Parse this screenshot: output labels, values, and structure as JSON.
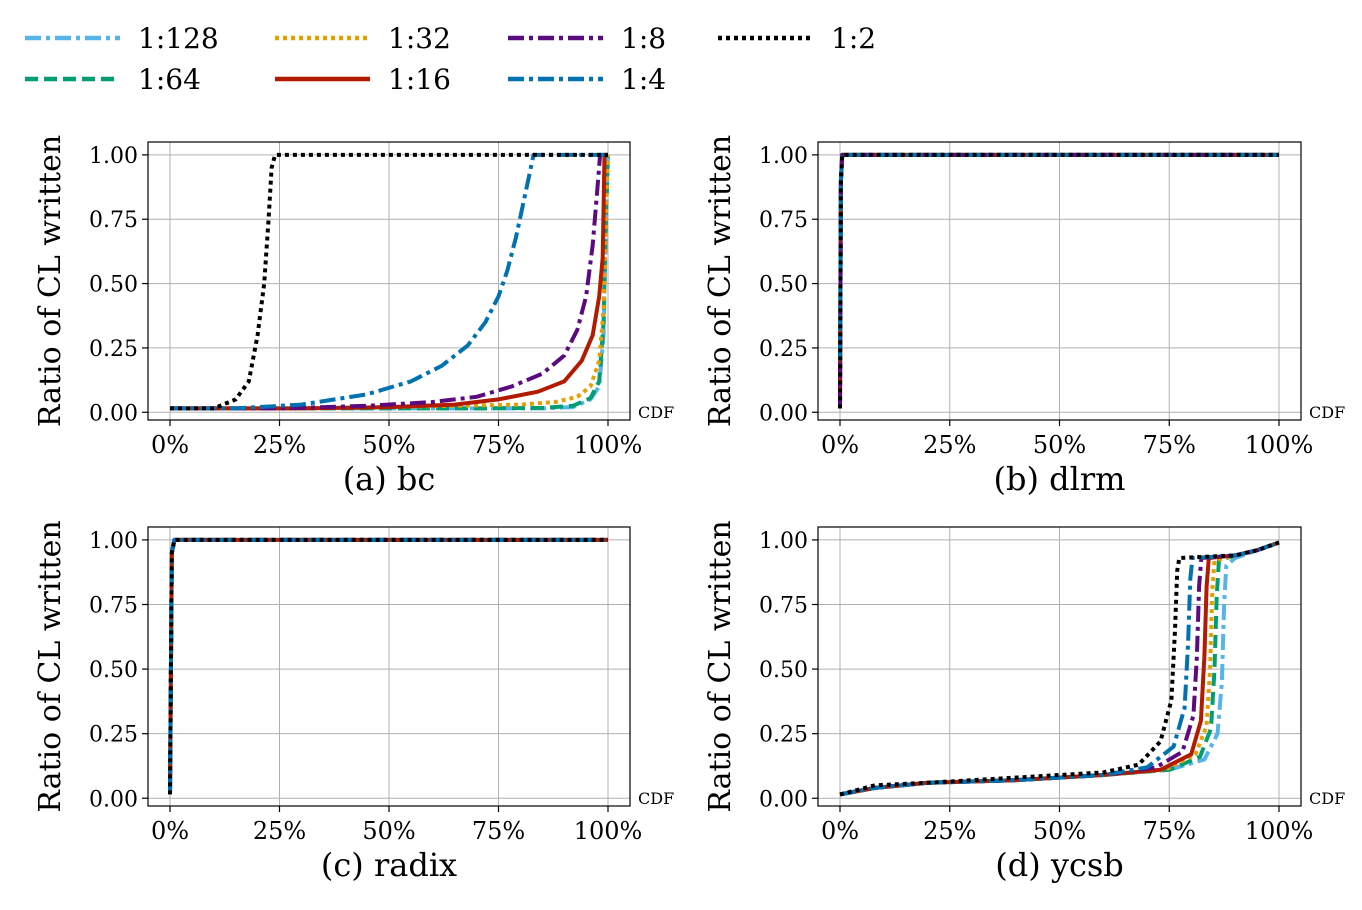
{
  "legend": {
    "placement": "top",
    "entries": [
      {
        "label": "1:128",
        "color": "#56b4e9",
        "dash": "dashdot"
      },
      {
        "label": "1:64",
        "color": "#009e73",
        "dash": "dashed"
      },
      {
        "label": "1:32",
        "color": "#e69f00",
        "dash": "dotted"
      },
      {
        "label": "1:16",
        "color": "#b31b00",
        "dash": "solid"
      },
      {
        "label": "1:8",
        "color": "#5b0a80",
        "dash": "dashdot"
      },
      {
        "label": "1:4",
        "color": "#0072b2",
        "dash": "dashdot"
      },
      {
        "label": "1:2",
        "color": "#000000",
        "dash": "dotted"
      }
    ]
  },
  "chart_data": [
    {
      "type": "line",
      "title": "(a) bc",
      "ylabel": "Ratio of CL written",
      "xunit": "CDF",
      "xlim": [
        0,
        100
      ],
      "ylim": [
        -0.03,
        1.05
      ],
      "xticks": [
        "0%",
        "25%",
        "50%",
        "75%",
        "100%"
      ],
      "yticks": [
        "0.00",
        "0.25",
        "0.50",
        "0.75",
        "1.00"
      ],
      "grid": true,
      "series": [
        {
          "name": "1:128",
          "x": [
            0,
            40,
            70,
            85,
            92,
            96,
            98,
            99,
            99.5,
            100
          ],
          "y": [
            0.015,
            0.015,
            0.015,
            0.015,
            0.02,
            0.05,
            0.1,
            0.3,
            0.7,
            1.0
          ]
        },
        {
          "name": "1:64",
          "x": [
            0,
            40,
            70,
            85,
            92,
            96,
            98,
            99,
            99.5,
            100
          ],
          "y": [
            0.015,
            0.015,
            0.015,
            0.017,
            0.025,
            0.055,
            0.12,
            0.35,
            0.75,
            1.0
          ]
        },
        {
          "name": "1:32",
          "x": [
            0,
            30,
            50,
            65,
            80,
            88,
            93,
            96,
            98,
            99,
            99.6,
            100
          ],
          "y": [
            0.015,
            0.015,
            0.02,
            0.025,
            0.03,
            0.04,
            0.06,
            0.1,
            0.2,
            0.4,
            0.8,
            1.0
          ]
        },
        {
          "name": "1:16",
          "x": [
            0,
            30,
            50,
            65,
            75,
            84,
            90,
            94,
            96.5,
            98,
            98.8,
            99.2,
            100
          ],
          "y": [
            0.015,
            0.015,
            0.02,
            0.03,
            0.05,
            0.08,
            0.12,
            0.2,
            0.3,
            0.45,
            0.6,
            1.0,
            1.0
          ]
        },
        {
          "name": "1:8",
          "x": [
            0,
            25,
            45,
            60,
            70,
            78,
            85,
            90,
            93,
            95,
            96.5,
            97.5,
            98.2,
            100
          ],
          "y": [
            0.015,
            0.015,
            0.025,
            0.04,
            0.06,
            0.1,
            0.15,
            0.22,
            0.32,
            0.45,
            0.65,
            0.85,
            1.0,
            1.0
          ]
        },
        {
          "name": "1:4",
          "x": [
            0,
            15,
            30,
            45,
            55,
            62,
            68,
            72,
            75,
            77,
            79,
            80.5,
            82,
            83,
            100
          ],
          "y": [
            0.015,
            0.015,
            0.03,
            0.07,
            0.12,
            0.18,
            0.26,
            0.35,
            0.45,
            0.55,
            0.68,
            0.8,
            0.92,
            1.0,
            1.0
          ]
        },
        {
          "name": "1:2",
          "x": [
            0,
            10,
            15,
            18,
            20,
            21.5,
            22.5,
            23.2,
            24,
            100
          ],
          "y": [
            0.015,
            0.015,
            0.05,
            0.12,
            0.3,
            0.5,
            0.75,
            0.95,
            1.0,
            1.0
          ]
        }
      ]
    },
    {
      "type": "line",
      "title": "(b) dlrm",
      "ylabel": "Ratio of CL written",
      "xunit": "CDF",
      "xlim": [
        0,
        100
      ],
      "ylim": [
        -0.03,
        1.05
      ],
      "xticks": [
        "0%",
        "25%",
        "50%",
        "75%",
        "100%"
      ],
      "yticks": [
        "0.00",
        "0.25",
        "0.50",
        "0.75",
        "1.00"
      ],
      "grid": true,
      "series": [
        {
          "name": "1:128",
          "x": [
            0,
            0.2,
            0.5,
            100
          ],
          "y": [
            0.015,
            0.9,
            1.0,
            1.0
          ]
        },
        {
          "name": "1:64",
          "x": [
            0,
            0.2,
            0.5,
            100
          ],
          "y": [
            0.015,
            0.9,
            1.0,
            1.0
          ]
        },
        {
          "name": "1:32",
          "x": [
            0,
            0.2,
            0.5,
            100
          ],
          "y": [
            0.015,
            0.9,
            1.0,
            1.0
          ]
        },
        {
          "name": "1:16",
          "x": [
            0,
            0.2,
            0.5,
            100
          ],
          "y": [
            0.015,
            0.9,
            1.0,
            1.0
          ]
        },
        {
          "name": "1:8",
          "x": [
            0,
            0.2,
            0.5,
            100
          ],
          "y": [
            0.015,
            0.9,
            1.0,
            1.0
          ]
        },
        {
          "name": "1:4",
          "x": [
            0,
            0.2,
            0.5,
            100
          ],
          "y": [
            0.2,
            0.9,
            1.0,
            1.0
          ]
        },
        {
          "name": "1:2",
          "x": [
            0,
            0.2,
            0.5,
            100
          ],
          "y": [
            0.015,
            0.9,
            1.0,
            1.0
          ]
        }
      ]
    },
    {
      "type": "line",
      "title": "(c) radix",
      "ylabel": "Ratio of CL written",
      "xunit": "CDF",
      "xlim": [
        0,
        100
      ],
      "ylim": [
        -0.03,
        1.05
      ],
      "xticks": [
        "0%",
        "25%",
        "50%",
        "75%",
        "100%"
      ],
      "yticks": [
        "0.00",
        "0.25",
        "0.50",
        "0.75",
        "1.00"
      ],
      "grid": true,
      "series": [
        {
          "name": "1:128",
          "x": [
            0,
            0.4,
            1,
            100
          ],
          "y": [
            0.015,
            0.95,
            1.0,
            1.0
          ]
        },
        {
          "name": "1:64",
          "x": [
            0,
            0.4,
            1,
            100
          ],
          "y": [
            0.015,
            0.95,
            1.0,
            1.0
          ]
        },
        {
          "name": "1:32",
          "x": [
            0,
            0.4,
            1,
            100
          ],
          "y": [
            0.015,
            0.95,
            1.0,
            1.0
          ]
        },
        {
          "name": "1:16",
          "x": [
            0,
            0.4,
            1,
            100
          ],
          "y": [
            0.015,
            0.95,
            1.0,
            1.0
          ]
        },
        {
          "name": "1:8",
          "x": [
            0,
            0.4,
            1,
            100
          ],
          "y": [
            0.015,
            0.95,
            1.0,
            1.0
          ]
        },
        {
          "name": "1:4",
          "x": [
            0,
            0.4,
            1,
            100
          ],
          "y": [
            0.015,
            0.95,
            1.0,
            1.0
          ]
        },
        {
          "name": "1:2",
          "x": [
            0,
            0.4,
            1,
            100
          ],
          "y": [
            0.015,
            0.95,
            1.0,
            1.0
          ]
        }
      ]
    },
    {
      "type": "line",
      "title": "(d) ycsb",
      "ylabel": "Ratio of CL written",
      "xunit": "CDF",
      "xlim": [
        0,
        100
      ],
      "ylim": [
        -0.03,
        1.05
      ],
      "xticks": [
        "0%",
        "25%",
        "50%",
        "75%",
        "100%"
      ],
      "yticks": [
        "0.00",
        "0.25",
        "0.50",
        "0.75",
        "1.00"
      ],
      "grid": true,
      "series": [
        {
          "name": "1:128",
          "x": [
            0,
            8,
            20,
            40,
            60,
            75,
            83,
            86,
            87,
            87.5,
            88,
            90,
            95,
            100
          ],
          "y": [
            0.015,
            0.04,
            0.06,
            0.07,
            0.09,
            0.11,
            0.15,
            0.25,
            0.45,
            0.75,
            0.9,
            0.93,
            0.96,
            0.99
          ]
        },
        {
          "name": "1:64",
          "x": [
            0,
            8,
            20,
            40,
            60,
            75,
            82,
            84.5,
            85.3,
            85.8,
            86.3,
            90,
            95,
            100
          ],
          "y": [
            0.015,
            0.04,
            0.06,
            0.07,
            0.09,
            0.11,
            0.16,
            0.27,
            0.5,
            0.78,
            0.92,
            0.94,
            0.96,
            0.99
          ]
        },
        {
          "name": "1:32",
          "x": [
            0,
            8,
            20,
            40,
            60,
            74,
            81,
            83.5,
            84.3,
            84.8,
            85.3,
            90,
            95,
            100
          ],
          "y": [
            0.015,
            0.04,
            0.06,
            0.07,
            0.09,
            0.11,
            0.17,
            0.28,
            0.5,
            0.8,
            0.92,
            0.94,
            0.96,
            0.99
          ]
        },
        {
          "name": "1:16",
          "x": [
            0,
            8,
            20,
            40,
            60,
            73,
            80,
            82.2,
            83,
            83.5,
            84,
            90,
            95,
            100
          ],
          "y": [
            0.015,
            0.04,
            0.06,
            0.07,
            0.09,
            0.11,
            0.17,
            0.3,
            0.55,
            0.82,
            0.93,
            0.94,
            0.96,
            0.99
          ]
        },
        {
          "name": "1:8",
          "x": [
            0,
            8,
            20,
            40,
            60,
            72,
            78,
            80.5,
            81.3,
            81.8,
            82.3,
            90,
            95,
            100
          ],
          "y": [
            0.015,
            0.04,
            0.06,
            0.07,
            0.09,
            0.12,
            0.18,
            0.32,
            0.55,
            0.82,
            0.93,
            0.94,
            0.96,
            0.99
          ]
        },
        {
          "name": "1:4",
          "x": [
            0,
            8,
            20,
            40,
            60,
            70,
            76,
            78.5,
            79.3,
            79.8,
            80.3,
            90,
            95,
            100
          ],
          "y": [
            0.015,
            0.04,
            0.06,
            0.07,
            0.09,
            0.12,
            0.2,
            0.35,
            0.6,
            0.85,
            0.93,
            0.94,
            0.96,
            0.99
          ]
        },
        {
          "name": "1:2",
          "x": [
            0,
            8,
            20,
            40,
            60,
            68,
            73,
            75.5,
            76.3,
            76.8,
            77.3,
            90,
            95,
            100
          ],
          "y": [
            0.015,
            0.05,
            0.06,
            0.08,
            0.1,
            0.13,
            0.22,
            0.38,
            0.65,
            0.88,
            0.93,
            0.94,
            0.96,
            0.99
          ]
        }
      ]
    }
  ]
}
